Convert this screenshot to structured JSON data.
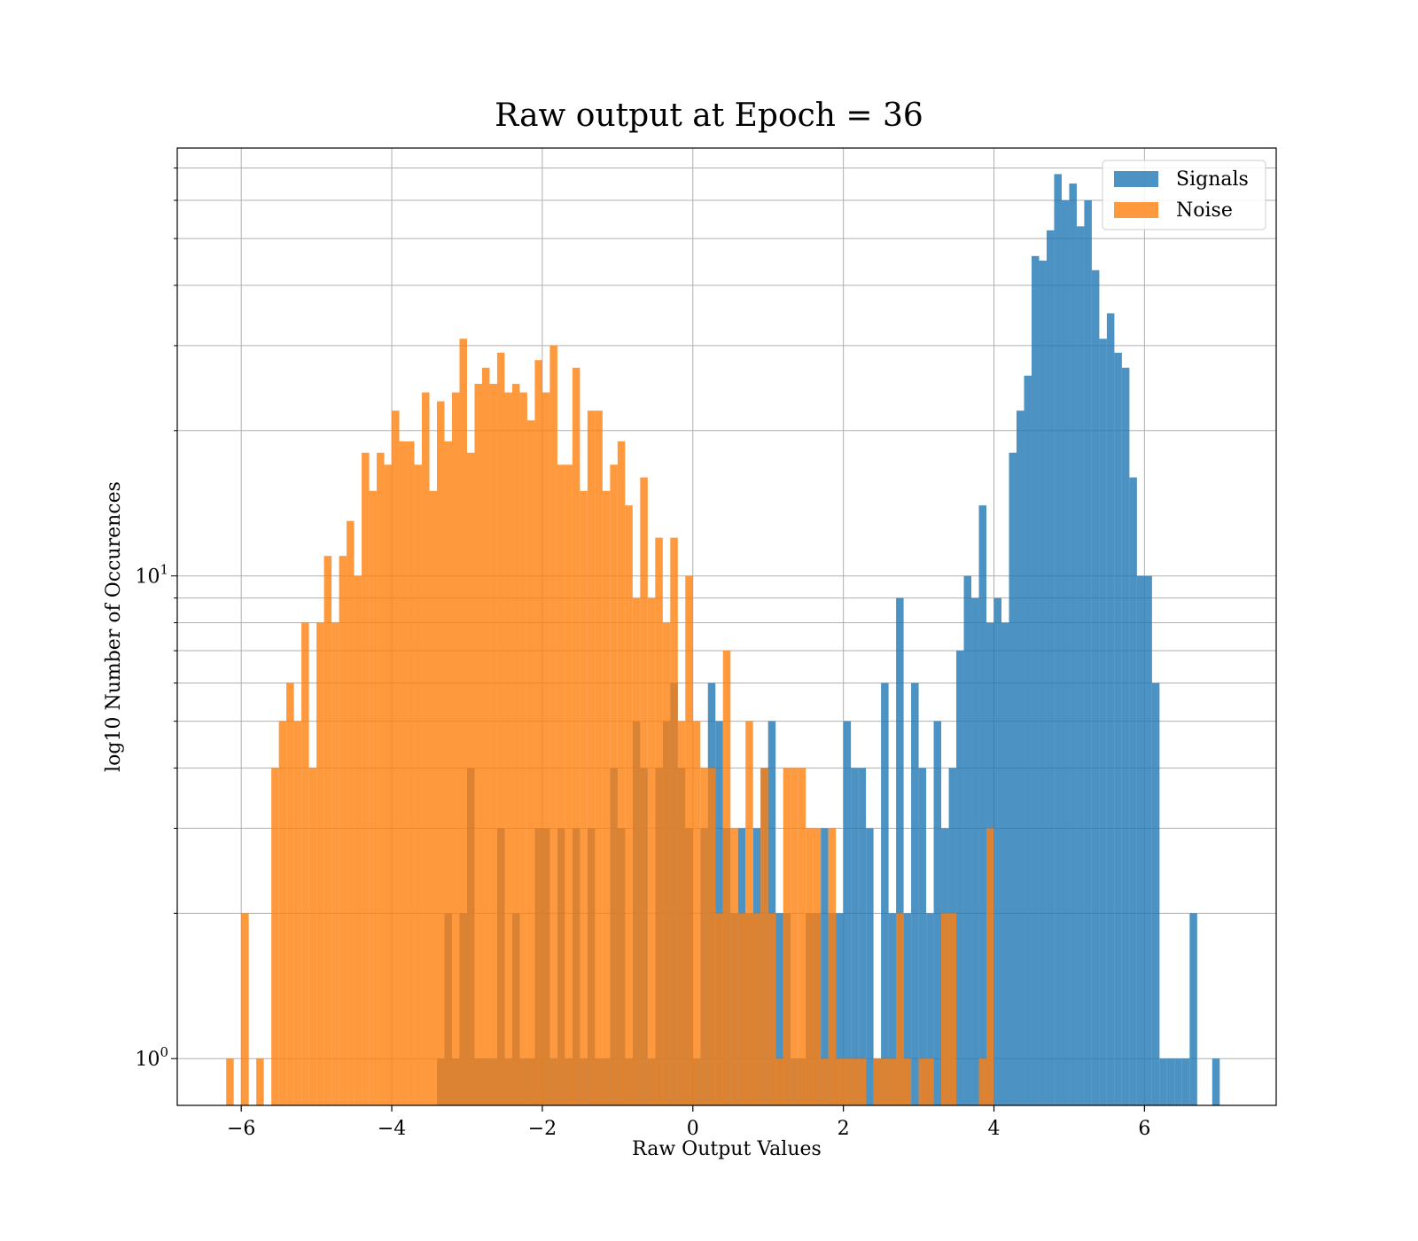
{
  "chart_data": {
    "type": "bar",
    "title": "Raw output at Epoch = 36",
    "xlabel": "Raw Output Values",
    "ylabel": "log10 Number of Occurences",
    "xlim": [
      -6.85,
      7.75
    ],
    "ylim": [
      0.8,
      77
    ],
    "yscale": "log",
    "grid": true,
    "legend_position": "top-right",
    "bin_width": 0.1,
    "x_ticks": [
      {
        "value": -6,
        "label": "−6"
      },
      {
        "value": -4,
        "label": "−4"
      },
      {
        "value": -2,
        "label": "−2"
      },
      {
        "value": 0,
        "label": "0"
      },
      {
        "value": 2,
        "label": "2"
      },
      {
        "value": 4,
        "label": "4"
      },
      {
        "value": 6,
        "label": "6"
      }
    ],
    "y_ticks": [
      {
        "value": 1,
        "base": "10",
        "exp": "0"
      },
      {
        "value": 10,
        "base": "10",
        "exp": "1"
      }
    ],
    "series": [
      {
        "name": "Signals",
        "color": "#1f77b4",
        "bins": [
          [
            -3.4,
            1
          ],
          [
            -3.3,
            2
          ],
          [
            -3.2,
            1
          ],
          [
            -3.1,
            2
          ],
          [
            -3.0,
            4
          ],
          [
            -2.9,
            1
          ],
          [
            -2.8,
            1
          ],
          [
            -2.7,
            1
          ],
          [
            -2.6,
            3
          ],
          [
            -2.5,
            1
          ],
          [
            -2.4,
            2
          ],
          [
            -2.3,
            1
          ],
          [
            -2.2,
            1
          ],
          [
            -2.1,
            3
          ],
          [
            -2.0,
            3
          ],
          [
            -1.9,
            1
          ],
          [
            -1.8,
            3
          ],
          [
            -1.7,
            1
          ],
          [
            -1.6,
            3
          ],
          [
            -1.5,
            1
          ],
          [
            -1.4,
            3
          ],
          [
            -1.3,
            1
          ],
          [
            -1.2,
            1
          ],
          [
            -1.1,
            4
          ],
          [
            -1.0,
            3
          ],
          [
            -0.9,
            1
          ],
          [
            -0.8,
            5
          ],
          [
            -0.7,
            4
          ],
          [
            -0.6,
            1
          ],
          [
            -0.5,
            4
          ],
          [
            -0.4,
            5
          ],
          [
            -0.3,
            6
          ],
          [
            -0.2,
            4
          ],
          [
            -0.1,
            3
          ],
          [
            0.0,
            1
          ],
          [
            0.1,
            3
          ],
          [
            0.2,
            6
          ],
          [
            0.3,
            5
          ],
          [
            0.4,
            3
          ],
          [
            0.5,
            2
          ],
          [
            0.6,
            3
          ],
          [
            0.7,
            2
          ],
          [
            0.8,
            3
          ],
          [
            0.9,
            4
          ],
          [
            1.0,
            5
          ],
          [
            1.1,
            2
          ],
          [
            1.2,
            2
          ],
          [
            1.3,
            1
          ],
          [
            1.4,
            1
          ],
          [
            1.5,
            2
          ],
          [
            1.6,
            2
          ],
          [
            1.7,
            3
          ],
          [
            1.8,
            2
          ],
          [
            1.9,
            2
          ],
          [
            2.0,
            5
          ],
          [
            2.1,
            4
          ],
          [
            2.2,
            4
          ],
          [
            2.3,
            3
          ],
          [
            2.4,
            1
          ],
          [
            2.5,
            6
          ],
          [
            2.6,
            2
          ],
          [
            2.7,
            9
          ],
          [
            2.8,
            2
          ],
          [
            2.9,
            6
          ],
          [
            3.0,
            4
          ],
          [
            3.1,
            2
          ],
          [
            3.2,
            5
          ],
          [
            3.3,
            3
          ],
          [
            3.4,
            4
          ],
          [
            3.5,
            7
          ],
          [
            3.6,
            10
          ],
          [
            3.7,
            9
          ],
          [
            3.8,
            14
          ],
          [
            3.9,
            8
          ],
          [
            4.0,
            9
          ],
          [
            4.1,
            8
          ],
          [
            4.2,
            18
          ],
          [
            4.3,
            22
          ],
          [
            4.4,
            26
          ],
          [
            4.5,
            46
          ],
          [
            4.6,
            45
          ],
          [
            4.7,
            52
          ],
          [
            4.8,
            68
          ],
          [
            4.9,
            60
          ],
          [
            5.0,
            65
          ],
          [
            5.1,
            53
          ],
          [
            5.2,
            60
          ],
          [
            5.3,
            43
          ],
          [
            5.4,
            31
          ],
          [
            5.5,
            35
          ],
          [
            5.6,
            29
          ],
          [
            5.7,
            27
          ],
          [
            5.8,
            16
          ],
          [
            5.9,
            10
          ],
          [
            6.0,
            10
          ],
          [
            6.1,
            6
          ],
          [
            6.2,
            1
          ],
          [
            6.3,
            1
          ],
          [
            6.4,
            1
          ],
          [
            6.5,
            1
          ],
          [
            6.6,
            2
          ],
          [
            6.9,
            1
          ]
        ]
      },
      {
        "name": "Noise",
        "color": "#ff7f0e",
        "bins": [
          [
            -6.2,
            1
          ],
          [
            -6.0,
            2
          ],
          [
            -5.8,
            1
          ],
          [
            -5.6,
            4
          ],
          [
            -5.5,
            5
          ],
          [
            -5.4,
            6
          ],
          [
            -5.3,
            5
          ],
          [
            -5.2,
            8
          ],
          [
            -5.1,
            4
          ],
          [
            -5.0,
            8
          ],
          [
            -4.9,
            11
          ],
          [
            -4.8,
            8
          ],
          [
            -4.7,
            11
          ],
          [
            -4.6,
            13
          ],
          [
            -4.5,
            10
          ],
          [
            -4.4,
            18
          ],
          [
            -4.3,
            15
          ],
          [
            -4.2,
            18
          ],
          [
            -4.1,
            17
          ],
          [
            -4.0,
            22
          ],
          [
            -3.9,
            19
          ],
          [
            -3.8,
            19
          ],
          [
            -3.7,
            17
          ],
          [
            -3.6,
            24
          ],
          [
            -3.5,
            15
          ],
          [
            -3.4,
            23
          ],
          [
            -3.3,
            19
          ],
          [
            -3.2,
            24
          ],
          [
            -3.1,
            31
          ],
          [
            -3.0,
            18
          ],
          [
            -2.9,
            25
          ],
          [
            -2.8,
            27
          ],
          [
            -2.7,
            25
          ],
          [
            -2.6,
            29
          ],
          [
            -2.5,
            24
          ],
          [
            -2.4,
            25
          ],
          [
            -2.3,
            24
          ],
          [
            -2.2,
            21
          ],
          [
            -2.1,
            28
          ],
          [
            -2.0,
            24
          ],
          [
            -1.9,
            30
          ],
          [
            -1.8,
            17
          ],
          [
            -1.7,
            17
          ],
          [
            -1.6,
            27
          ],
          [
            -1.5,
            15
          ],
          [
            -1.4,
            22
          ],
          [
            -1.3,
            22
          ],
          [
            -1.2,
            15
          ],
          [
            -1.1,
            17
          ],
          [
            -1.0,
            19
          ],
          [
            -0.9,
            14
          ],
          [
            -0.8,
            9
          ],
          [
            -0.7,
            16
          ],
          [
            -0.6,
            9
          ],
          [
            -0.5,
            12
          ],
          [
            -0.4,
            8
          ],
          [
            -0.3,
            12
          ],
          [
            -0.2,
            5
          ],
          [
            -0.1,
            10
          ],
          [
            0.0,
            5
          ],
          [
            0.1,
            4
          ],
          [
            0.2,
            4
          ],
          [
            0.3,
            2
          ],
          [
            0.4,
            7
          ],
          [
            0.5,
            3
          ],
          [
            0.6,
            2
          ],
          [
            0.7,
            5
          ],
          [
            0.8,
            2
          ],
          [
            0.9,
            4
          ],
          [
            1.0,
            2
          ],
          [
            1.1,
            1
          ],
          [
            1.2,
            4
          ],
          [
            1.3,
            4
          ],
          [
            1.4,
            4
          ],
          [
            1.5,
            3
          ],
          [
            1.6,
            3
          ],
          [
            1.7,
            1
          ],
          [
            1.8,
            3
          ],
          [
            1.9,
            1
          ],
          [
            2.0,
            1
          ],
          [
            2.1,
            1
          ],
          [
            2.2,
            1
          ],
          [
            2.4,
            1
          ],
          [
            2.5,
            1
          ],
          [
            2.6,
            1
          ],
          [
            2.7,
            2
          ],
          [
            2.8,
            1
          ],
          [
            3.0,
            1
          ],
          [
            3.1,
            1
          ],
          [
            3.3,
            2
          ],
          [
            3.4,
            2
          ],
          [
            3.8,
            1
          ],
          [
            3.9,
            3
          ]
        ]
      }
    ]
  }
}
